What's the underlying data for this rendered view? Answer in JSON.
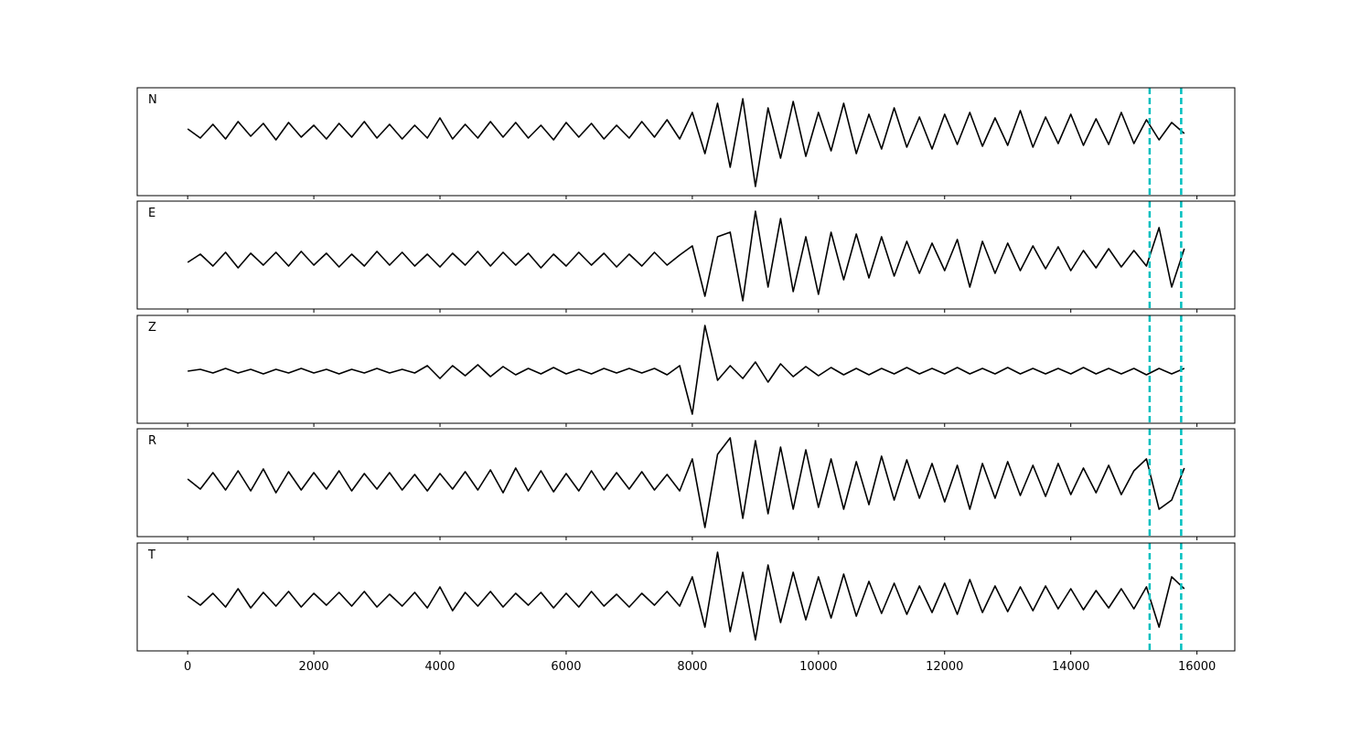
{
  "chart_data": [
    {
      "type": "line",
      "label": "N",
      "color": "#000000",
      "vline_color": "#00bfbf",
      "vlines": [
        15250,
        15750
      ],
      "xlim": [
        -800,
        16600
      ],
      "ylim": [
        -71,
        47
      ],
      "x": [
        0,
        200,
        400,
        600,
        800,
        1000,
        1200,
        1400,
        1600,
        1800,
        2000,
        2200,
        2400,
        2600,
        2800,
        3000,
        3200,
        3400,
        3600,
        3800,
        4000,
        4200,
        4400,
        4600,
        4800,
        5000,
        5200,
        5400,
        5600,
        5800,
        6000,
        6200,
        6400,
        6600,
        6800,
        7000,
        7200,
        7400,
        7600,
        7800,
        8000,
        8200,
        8400,
        8600,
        8800,
        9000,
        9200,
        9400,
        9600,
        9800,
        10000,
        10200,
        10400,
        10600,
        10800,
        11000,
        11200,
        11400,
        11600,
        11800,
        12000,
        12200,
        12400,
        12600,
        12800,
        13000,
        13200,
        13400,
        13600,
        13800,
        14000,
        14200,
        14400,
        14600,
        14800,
        15000,
        15200,
        15400,
        15600,
        15800
      ],
      "values": [
        2,
        -8,
        7,
        -9,
        10,
        -6,
        8,
        -10,
        9,
        -7,
        6,
        -9,
        8,
        -7,
        10,
        -8,
        7,
        -9,
        6,
        -8,
        14,
        -9,
        7,
        -8,
        10,
        -7,
        9,
        -8,
        6,
        -10,
        9,
        -7,
        8,
        -9,
        6,
        -8,
        10,
        -7,
        12,
        -9,
        20,
        -25,
        30,
        -40,
        35,
        -61,
        25,
        -30,
        32,
        -28,
        20,
        -22,
        30,
        -25,
        18,
        -20,
        25,
        -18,
        15,
        -20,
        18,
        -15,
        20,
        -17,
        14,
        -16,
        22,
        -18,
        15,
        -14,
        18,
        -16,
        13,
        -15,
        20,
        -14,
        12,
        -10,
        9,
        -3
      ]
    },
    {
      "type": "line",
      "label": "E",
      "color": "#000000",
      "vline_color": "#00bfbf",
      "vlines": [
        15250,
        15750
      ],
      "xlim": [
        -800,
        16600
      ],
      "ylim": [
        -54,
        64
      ],
      "x": [
        0,
        200,
        400,
        600,
        800,
        1000,
        1200,
        1400,
        1600,
        1800,
        2000,
        2200,
        2400,
        2600,
        2800,
        3000,
        3200,
        3400,
        3600,
        3800,
        4000,
        4200,
        4400,
        4600,
        4800,
        5000,
        5200,
        5400,
        5600,
        5800,
        6000,
        6200,
        6400,
        6600,
        6800,
        7000,
        7200,
        7400,
        7600,
        7800,
        8000,
        8200,
        8400,
        8600,
        8800,
        9000,
        9200,
        9400,
        9600,
        9800,
        10000,
        10200,
        10400,
        10600,
        10800,
        11000,
        11200,
        11400,
        11600,
        11800,
        12000,
        12200,
        12400,
        12600,
        12800,
        13000,
        13200,
        13400,
        13600,
        13800,
        14000,
        14200,
        14400,
        14600,
        14800,
        15000,
        15200,
        15400,
        15600,
        15800
      ],
      "values": [
        -3,
        6,
        -7,
        8,
        -9,
        7,
        -6,
        8,
        -7,
        9,
        -6,
        7,
        -8,
        6,
        -7,
        9,
        -6,
        8,
        -7,
        6,
        -8,
        7,
        -6,
        9,
        -7,
        8,
        -6,
        7,
        -9,
        6,
        -7,
        8,
        -6,
        7,
        -8,
        6,
        -7,
        8,
        -6,
        5,
        15,
        -40,
        25,
        30,
        -45,
        53,
        -30,
        45,
        -35,
        25,
        -38,
        30,
        -22,
        28,
        -20,
        25,
        -18,
        20,
        -15,
        18,
        -12,
        22,
        -30,
        20,
        -15,
        18,
        -12,
        15,
        -10,
        14,
        -12,
        10,
        -9,
        12,
        -8,
        10,
        -7,
        35,
        -30,
        12
      ]
    },
    {
      "type": "line",
      "label": "Z",
      "color": "#000000",
      "vline_color": "#00bfbf",
      "vlines": [
        15250,
        15750
      ],
      "xlim": [
        -800,
        16600
      ],
      "ylim": [
        -57,
        61
      ],
      "x": [
        0,
        200,
        400,
        600,
        800,
        1000,
        1200,
        1400,
        1600,
        1800,
        2000,
        2200,
        2400,
        2600,
        2800,
        3000,
        3200,
        3400,
        3600,
        3800,
        4000,
        4200,
        4400,
        4600,
        4800,
        5000,
        5200,
        5400,
        5600,
        5800,
        6000,
        6200,
        6400,
        6600,
        6800,
        7000,
        7200,
        7400,
        7600,
        7800,
        8000,
        8200,
        8400,
        8600,
        8800,
        9000,
        9200,
        9400,
        9600,
        9800,
        10000,
        10200,
        10400,
        10600,
        10800,
        11000,
        11200,
        11400,
        11600,
        11800,
        12000,
        12200,
        12400,
        12600,
        12800,
        13000,
        13200,
        13400,
        13600,
        13800,
        14000,
        14200,
        14400,
        14600,
        14800,
        15000,
        15200,
        15400,
        15600,
        15800
      ],
      "values": [
        0,
        2,
        -2,
        3,
        -2,
        2,
        -3,
        2,
        -2,
        3,
        -2,
        2,
        -3,
        2,
        -2,
        3,
        -2,
        2,
        -2,
        6,
        -8,
        6,
        -5,
        7,
        -6,
        5,
        -4,
        3,
        -3,
        4,
        -3,
        2,
        -3,
        3,
        -2,
        3,
        -2,
        3,
        -4,
        6,
        -47,
        50,
        -10,
        6,
        -8,
        10,
        -12,
        8,
        -6,
        5,
        -5,
        4,
        -4,
        3,
        -4,
        3,
        -3,
        4,
        -3,
        3,
        -3,
        4,
        -3,
        3,
        -3,
        4,
        -3,
        3,
        -3,
        3,
        -3,
        4,
        -3,
        3,
        -3,
        3,
        -4,
        3,
        -3,
        3
      ]
    },
    {
      "type": "line",
      "label": "R",
      "color": "#000000",
      "vline_color": "#00bfbf",
      "vlines": [
        15250,
        15750
      ],
      "xlim": [
        -800,
        16600
      ],
      "ylim": [
        -60,
        58
      ],
      "x": [
        0,
        200,
        400,
        600,
        800,
        1000,
        1200,
        1400,
        1600,
        1800,
        2000,
        2200,
        2400,
        2600,
        2800,
        3000,
        3200,
        3400,
        3600,
        3800,
        4000,
        4200,
        4400,
        4600,
        4800,
        5000,
        5200,
        5400,
        5600,
        5800,
        6000,
        6200,
        6400,
        6600,
        6800,
        7000,
        7200,
        7400,
        7600,
        7800,
        8000,
        8200,
        8400,
        8600,
        8800,
        9000,
        9200,
        9400,
        9600,
        9800,
        10000,
        10200,
        10400,
        10600,
        10800,
        11000,
        11200,
        11400,
        11600,
        11800,
        12000,
        12200,
        12400,
        12600,
        12800,
        13000,
        13200,
        13400,
        13600,
        13800,
        14000,
        14200,
        14400,
        14600,
        14800,
        15000,
        15200,
        15400,
        15600,
        15800
      ],
      "values": [
        3,
        -8,
        10,
        -9,
        12,
        -10,
        14,
        -12,
        11,
        -9,
        10,
        -8,
        12,
        -10,
        9,
        -8,
        10,
        -9,
        8,
        -10,
        9,
        -8,
        11,
        -9,
        13,
        -12,
        15,
        -10,
        12,
        -11,
        9,
        -10,
        12,
        -9,
        10,
        -8,
        11,
        -9,
        8,
        -10,
        25,
        -50,
        30,
        48,
        -40,
        45,
        -35,
        38,
        -30,
        35,
        -28,
        25,
        -30,
        22,
        -25,
        28,
        -20,
        24,
        -18,
        20,
        -22,
        18,
        -30,
        20,
        -18,
        22,
        -15,
        18,
        -16,
        20,
        -14,
        15,
        -12,
        18,
        -14,
        12,
        25,
        -30,
        -20,
        15
      ]
    },
    {
      "type": "line",
      "label": "T",
      "color": "#000000",
      "vline_color": "#00bfbf",
      "vlines": [
        15250,
        15750
      ],
      "xlim": [
        -800,
        16600
      ],
      "ylim": [
        -56,
        62
      ],
      "x": [
        0,
        200,
        400,
        600,
        800,
        1000,
        1200,
        1400,
        1600,
        1800,
        2000,
        2200,
        2400,
        2600,
        2800,
        3000,
        3200,
        3400,
        3600,
        3800,
        4000,
        4200,
        4400,
        4600,
        4800,
        5000,
        5200,
        5400,
        5600,
        5800,
        6000,
        6200,
        6400,
        6600,
        6800,
        7000,
        7200,
        7400,
        7600,
        7800,
        8000,
        8200,
        8400,
        8600,
        8800,
        9000,
        9200,
        9400,
        9600,
        9800,
        10000,
        10200,
        10400,
        10600,
        10800,
        11000,
        11200,
        11400,
        11600,
        11800,
        12000,
        12200,
        12400,
        12600,
        12800,
        13000,
        13200,
        13400,
        13600,
        13800,
        14000,
        14200,
        14400,
        14600,
        14800,
        15000,
        15200,
        15400,
        15600,
        15800
      ],
      "values": [
        4,
        -6,
        7,
        -8,
        12,
        -9,
        8,
        -7,
        9,
        -8,
        7,
        -6,
        8,
        -7,
        9,
        -8,
        6,
        -7,
        8,
        -9,
        14,
        -12,
        8,
        -7,
        9,
        -8,
        7,
        -6,
        8,
        -9,
        7,
        -8,
        9,
        -7,
        6,
        -8,
        7,
        -6,
        9,
        -7,
        25,
        -30,
        52,
        -35,
        30,
        -44,
        38,
        -25,
        30,
        -22,
        25,
        -20,
        28,
        -18,
        20,
        -15,
        18,
        -16,
        15,
        -14,
        18,
        -16,
        22,
        -14,
        15,
        -13,
        14,
        -12,
        15,
        -10,
        12,
        -11,
        10,
        -9,
        12,
        -10,
        14,
        -30,
        25,
        12
      ],
      "xticks": [
        0,
        2000,
        4000,
        6000,
        8000,
        10000,
        12000,
        14000,
        16000
      ]
    }
  ]
}
